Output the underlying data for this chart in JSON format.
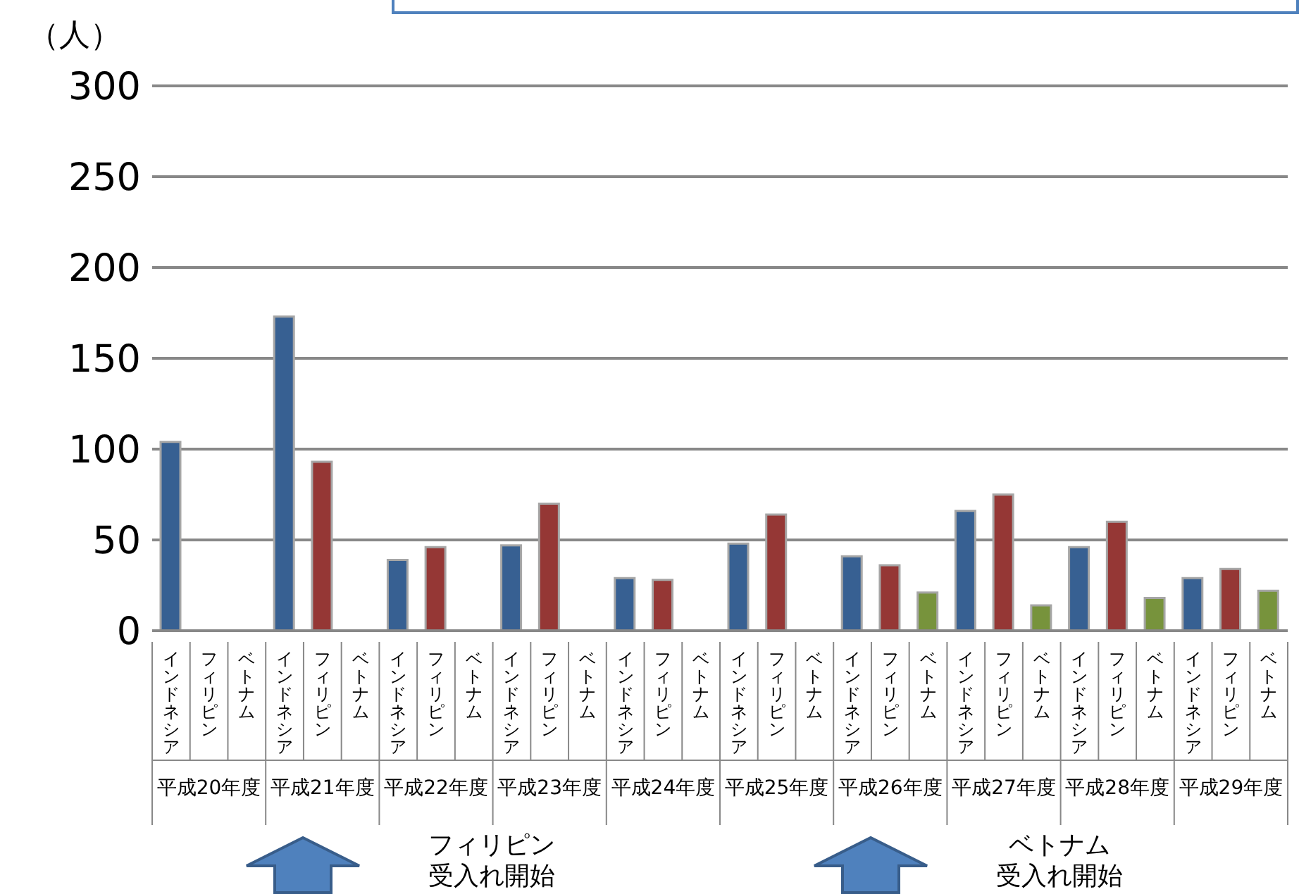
{
  "chart_data": {
    "type": "bar",
    "ylabel": "（人）",
    "categories": [
      "平成20年度",
      "平成21年度",
      "平成22年度",
      "平成23年度",
      "平成24年度",
      "平成25年度",
      "平成26年度",
      "平成27年度",
      "平成28年度",
      "平成29年度"
    ],
    "series": [
      {
        "name": "インドネシア",
        "color": "#376092",
        "values": [
          104,
          173,
          39,
          47,
          29,
          48,
          41,
          66,
          46,
          29
        ]
      },
      {
        "name": "フィリピン",
        "color": "#953735",
        "values": [
          null,
          93,
          46,
          70,
          28,
          64,
          36,
          75,
          60,
          34
        ]
      },
      {
        "name": "ベトナム",
        "color": "#77933c",
        "values": [
          null,
          null,
          null,
          null,
          null,
          null,
          21,
          14,
          18,
          22
        ]
      }
    ],
    "ylim": [
      0,
      300
    ],
    "yticks": [
      0,
      50,
      100,
      150,
      200,
      250,
      300
    ],
    "grid": "y",
    "legend": false,
    "annotations": [
      "フィリピン受入れ開始",
      "ベトナム受入れ開始"
    ]
  }
}
